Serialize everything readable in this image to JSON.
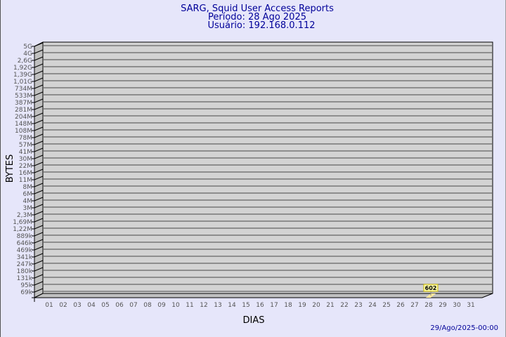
{
  "chart_data": {
    "type": "bar",
    "title": "SARG, Squid User Access Reports",
    "subtitle_lines": [
      "Período: 28 Ago 2025",
      "Usuário: 192.168.0.112"
    ],
    "xlabel": "DIAS",
    "ylabel": "BYTES",
    "y_scale": "log",
    "y_tick_labels": [
      "5G",
      "4G",
      "2,6G",
      "1,92G",
      "1,39G",
      "1,01G",
      "734M",
      "533M",
      "387M",
      "281M",
      "204M",
      "148M",
      "108M",
      "78M",
      "57M",
      "41M",
      "30M",
      "22M",
      "16M",
      "11M",
      "8M",
      "6M",
      "4M",
      "3M",
      "2,3M",
      "1,69M",
      "1,22M",
      "889k",
      "646k",
      "469k",
      "341k",
      "247k",
      "180k",
      "131k",
      "95k",
      "69k"
    ],
    "categories": [
      "01",
      "02",
      "03",
      "04",
      "05",
      "06",
      "07",
      "08",
      "09",
      "10",
      "11",
      "12",
      "13",
      "14",
      "15",
      "16",
      "17",
      "18",
      "19",
      "20",
      "21",
      "22",
      "23",
      "24",
      "25",
      "26",
      "27",
      "28",
      "29",
      "30",
      "31"
    ],
    "series": [
      {
        "points": [
          {
            "x": "28",
            "value": 602,
            "label": "602"
          }
        ]
      }
    ],
    "grid": true,
    "colors": {
      "background": "#e6e6fa",
      "plane": "#d3d3d3",
      "wall": "#c0c0c0",
      "bar": "#ffe89a",
      "label_box": "#ffffaa",
      "title": "#000099"
    }
  },
  "footer": {
    "timestamp": "29/Ago/2025-00:00"
  }
}
